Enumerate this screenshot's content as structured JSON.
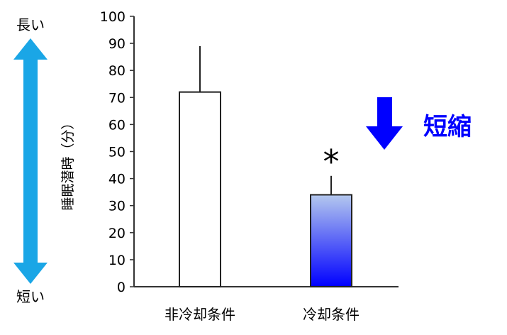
{
  "chart_data": {
    "type": "bar",
    "categories": [
      "非冷却条件",
      "冷却条件"
    ],
    "values": [
      72,
      34
    ],
    "error_upper": [
      89,
      41
    ],
    "ylabel": "睡眠潜時（分）",
    "ylim": [
      0,
      100
    ],
    "yticks": [
      0,
      10,
      20,
      30,
      40,
      50,
      60,
      70,
      80,
      90,
      100
    ],
    "grid": false,
    "significance_marker": "*",
    "bar_colors": [
      "#ffffff",
      "gradient:#b0c4f0-#0000ff"
    ],
    "annotations": {
      "scale_top": "長い",
      "scale_bottom": "短い",
      "effect_label": "短縮",
      "scale_arrow_color": "#1aa6e6",
      "effect_color": "#0000ff"
    }
  }
}
